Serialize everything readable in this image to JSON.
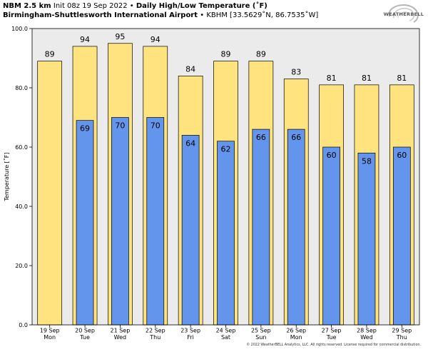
{
  "header": {
    "model": "NBM 2.5 km",
    "init": "Init 08z 19 Sep 2022",
    "sep": "•",
    "product": "Daily High/Low Temperature (˚F)",
    "station": "Birmingham-Shuttlesworth International Airport",
    "station_id": "KBHM [33.5629˚N, 86.7535˚W]"
  },
  "logo": {
    "text": "WEATHERBELL"
  },
  "footer": {
    "copyright": "© 2022 WeatherBELL Analytics, LLC. All rights reserved. License required for commercial distribution."
  },
  "colors": {
    "high": "#fee37e",
    "low": "#6495ed",
    "plot_bg": "#ebebeb"
  },
  "chart_data": {
    "type": "bar",
    "ylabel": "Temperature [˚F]",
    "ylim": [
      0,
      100
    ],
    "yticks": [
      0,
      20,
      40,
      60,
      80,
      100
    ],
    "ytick_labels": [
      "0.0",
      "20.0",
      "40.0",
      "60.0",
      "80.0",
      "100.0"
    ],
    "grid": false,
    "categories": [
      {
        "date": "19 Sep",
        "day": "Mon"
      },
      {
        "date": "20 Sep",
        "day": "Tue"
      },
      {
        "date": "21 Sep",
        "day": "Wed"
      },
      {
        "date": "22 Sep",
        "day": "Thu"
      },
      {
        "date": "23 Sep",
        "day": "Fri"
      },
      {
        "date": "24 Sep",
        "day": "Sat"
      },
      {
        "date": "25 Sep",
        "day": "Sun"
      },
      {
        "date": "26 Sep",
        "day": "Mon"
      },
      {
        "date": "27 Sep",
        "day": "Tue"
      },
      {
        "date": "28 Sep",
        "day": "Wed"
      },
      {
        "date": "29 Sep",
        "day": "Thu"
      }
    ],
    "series": [
      {
        "key": "high",
        "values": [
          89,
          94,
          95,
          94,
          84,
          89,
          89,
          83,
          81,
          81,
          81
        ]
      },
      {
        "key": "low",
        "values": [
          null,
          69,
          70,
          70,
          64,
          62,
          66,
          66,
          60,
          58,
          60
        ]
      }
    ]
  }
}
